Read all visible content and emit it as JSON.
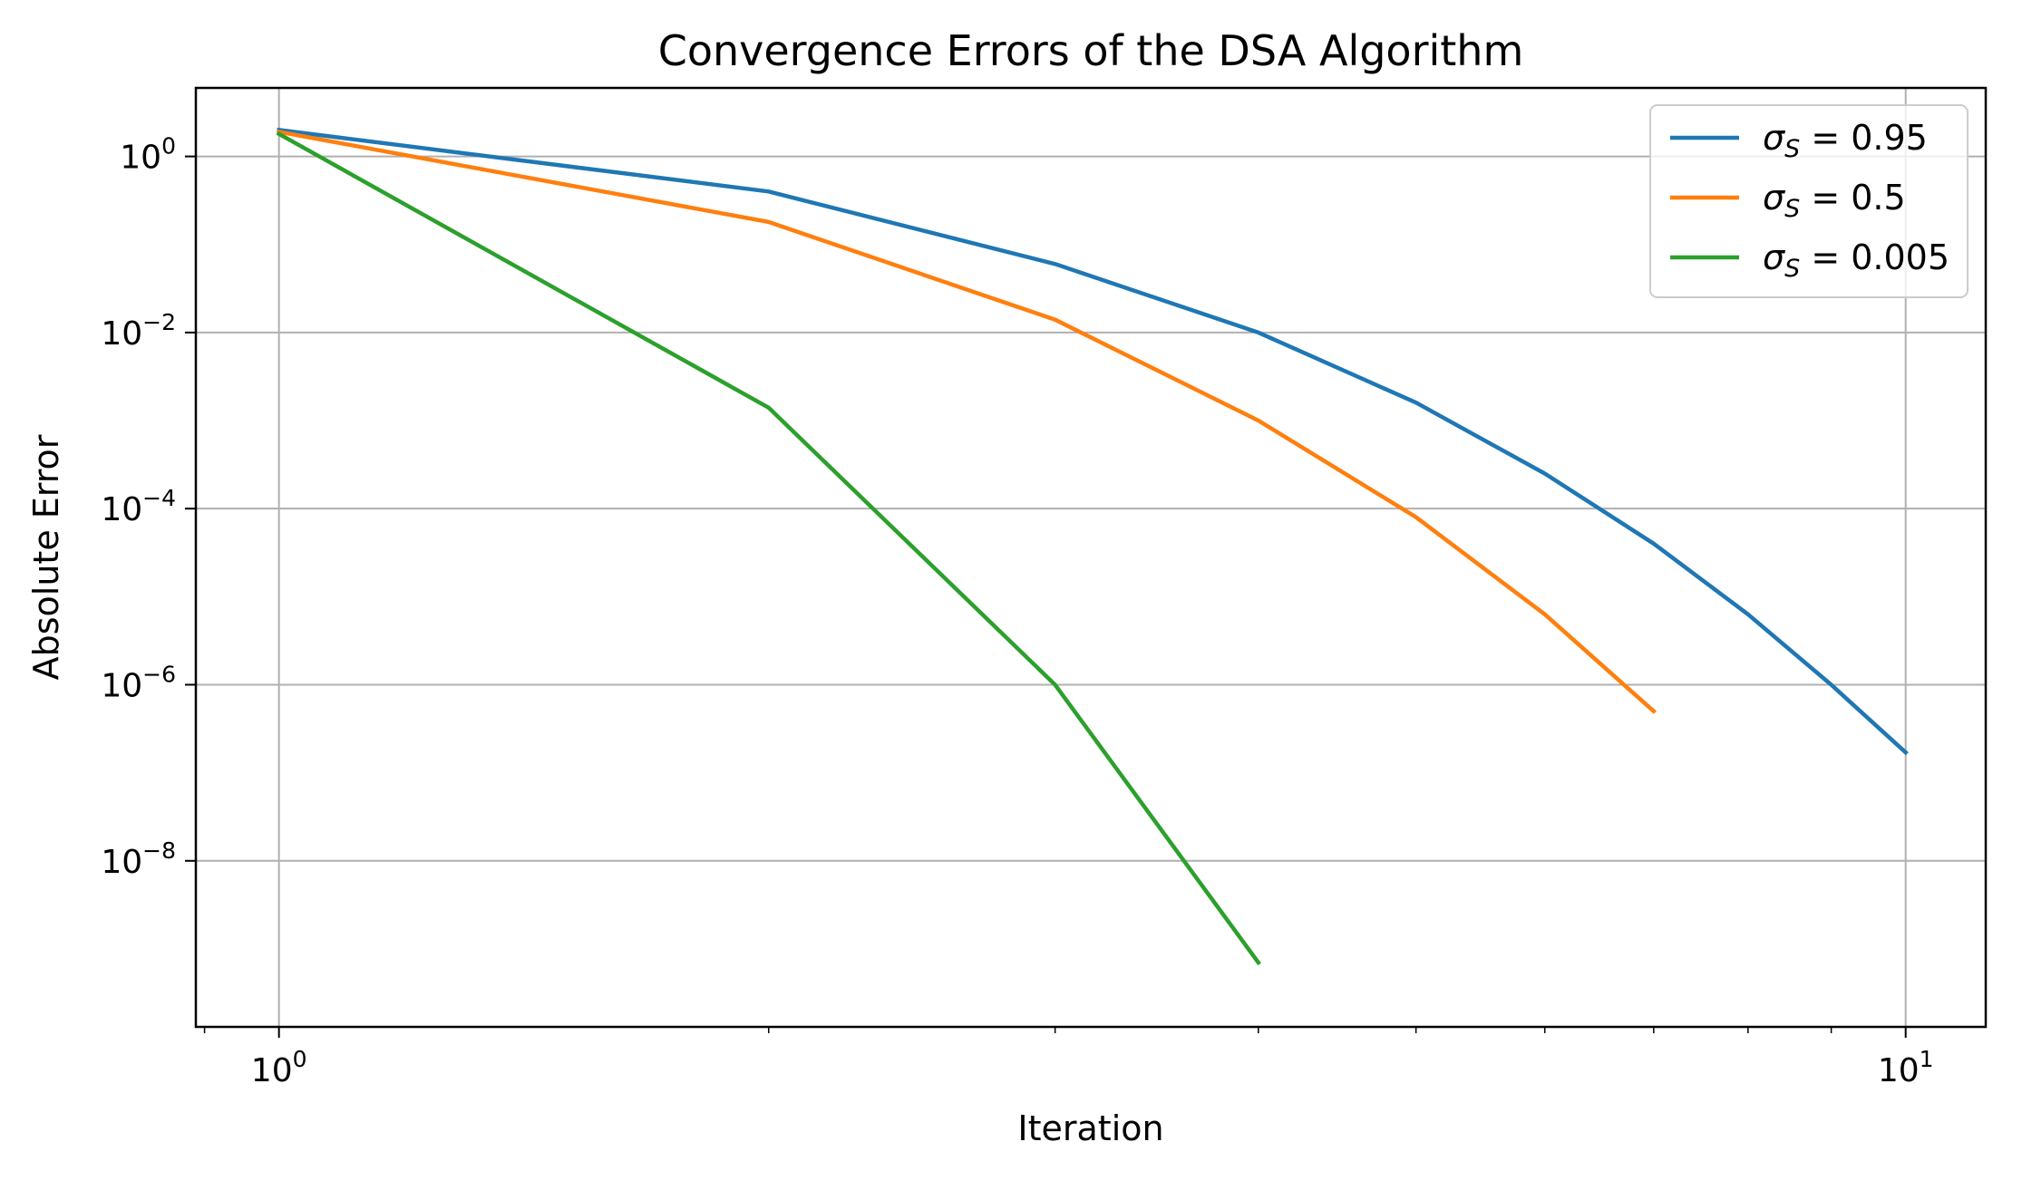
{
  "chart_data": {
    "type": "line",
    "title": "Convergence Errors of the DSA Algorithm",
    "xlabel": "Iteration",
    "ylabel": "Absolute Error",
    "xscale": "log",
    "yscale": "log",
    "xlim": [
      0.889,
      11.2
    ],
    "ylim": [
      1.3e-10,
      6.0
    ],
    "x_ticks": [
      {
        "value": 1,
        "base": "10",
        "exp": "0"
      },
      {
        "value": 10,
        "base": "10",
        "exp": "1"
      }
    ],
    "y_ticks": [
      {
        "value": 1,
        "base": "10",
        "exp": "0"
      },
      {
        "value": 0.01,
        "base": "10",
        "exp": "−2"
      },
      {
        "value": 0.0001,
        "base": "10",
        "exp": "−4"
      },
      {
        "value": 1e-06,
        "base": "10",
        "exp": "−6"
      },
      {
        "value": 1e-08,
        "base": "10",
        "exp": "−8"
      }
    ],
    "grid": true,
    "legend_position": "top-right",
    "series": [
      {
        "name": "σS = 0.95",
        "legend_prefix": "σ",
        "legend_sub": "S",
        "legend_value": " = 0.95",
        "color": "#1f77b4",
        "x": [
          1,
          2,
          3,
          4,
          5,
          6,
          7,
          8,
          9,
          10
        ],
        "y": [
          2.0,
          0.4,
          0.06,
          0.01,
          0.0016,
          0.00025,
          4e-05,
          6.3e-06,
          1e-06,
          1.7e-07
        ]
      },
      {
        "name": "σS = 0.5",
        "legend_prefix": "σ",
        "legend_sub": "S",
        "legend_value": " = 0.5",
        "color": "#ff7f0e",
        "x": [
          1,
          2,
          3,
          4,
          5,
          6,
          7
        ],
        "y": [
          1.9,
          0.18,
          0.014,
          0.001,
          8e-05,
          6.3e-06,
          5e-07
        ]
      },
      {
        "name": "σS = 0.005",
        "legend_prefix": "σ",
        "legend_sub": "S",
        "legend_value": " = 0.005",
        "color": "#2ca02c",
        "x": [
          1,
          2,
          3,
          4
        ],
        "y": [
          1.8,
          0.0014,
          1e-06,
          7e-10
        ]
      }
    ]
  }
}
